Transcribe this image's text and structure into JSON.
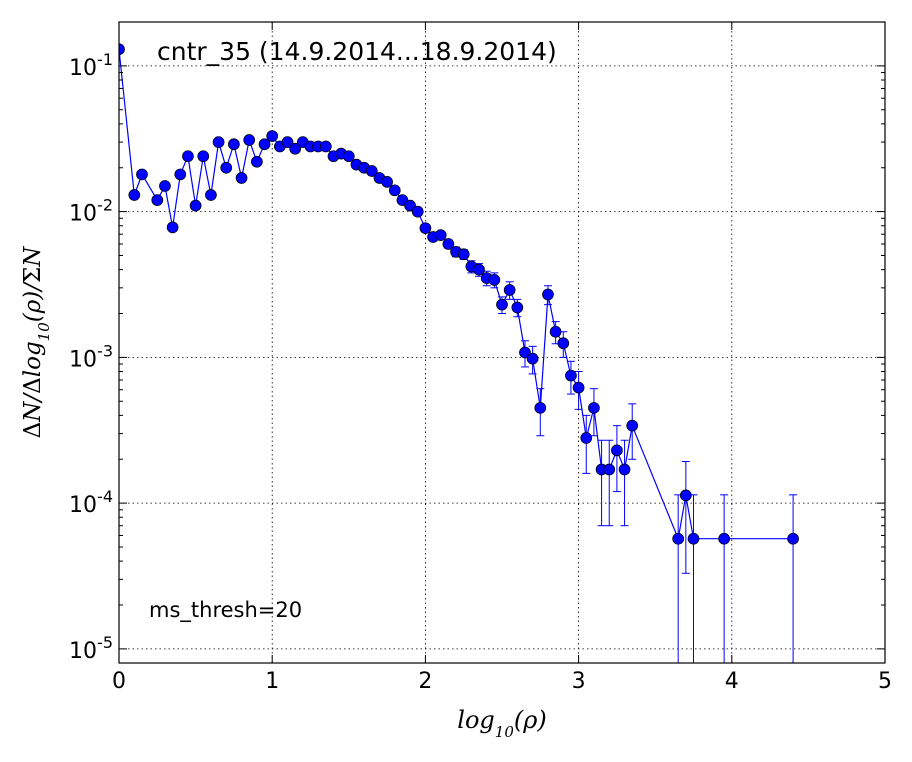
{
  "chart_data": {
    "type": "scatter",
    "title": "cntr_35 (14.9.2014...18.9.2014)",
    "annotation": "ms_thresh=20",
    "xlabel": "log10(ρ)",
    "ylabel": "ΔN/Δlog10(ρ)/ΣN",
    "xlim": [
      0,
      5
    ],
    "ylim": [
      8e-06,
      0.2
    ],
    "yscale": "log",
    "grid": true,
    "x_ticks": [
      "0",
      "1",
      "2",
      "3",
      "4",
      "5"
    ],
    "y_ticks": [
      {
        "base": "10",
        "exp": "-1",
        "value": 0.1
      },
      {
        "base": "10",
        "exp": "-2",
        "value": 0.01
      },
      {
        "base": "10",
        "exp": "-3",
        "value": 0.001
      },
      {
        "base": "10",
        "exp": "-4",
        "value": 0.0001
      },
      {
        "base": "10",
        "exp": "-5",
        "value": 1e-05
      }
    ],
    "series": [
      {
        "color": "#0000ff",
        "marker": "circle",
        "x": [
          0.0,
          0.1,
          0.15,
          0.25,
          0.3,
          0.35,
          0.4,
          0.45,
          0.5,
          0.55,
          0.6,
          0.65,
          0.7,
          0.75,
          0.8,
          0.85,
          0.9,
          0.95,
          1.0,
          1.05,
          1.1,
          1.15,
          1.2,
          1.25,
          1.3,
          1.35,
          1.4,
          1.45,
          1.5,
          1.55,
          1.6,
          1.65,
          1.7,
          1.75,
          1.8,
          1.85,
          1.9,
          1.95,
          2.0,
          2.05,
          2.1,
          2.15,
          2.2,
          2.25,
          2.3,
          2.35,
          2.4,
          2.45,
          2.5,
          2.55,
          2.6,
          2.65,
          2.7,
          2.75,
          2.8,
          2.85,
          2.9,
          2.95,
          3.0,
          3.05,
          3.1,
          3.15,
          3.2,
          3.25,
          3.3,
          3.35,
          3.65,
          3.7,
          3.75,
          3.95,
          4.4
        ],
        "y": [
          0.13,
          0.013,
          0.018,
          0.012,
          0.015,
          0.0078,
          0.018,
          0.024,
          0.011,
          0.024,
          0.013,
          0.03,
          0.02,
          0.029,
          0.017,
          0.031,
          0.022,
          0.029,
          0.033,
          0.028,
          0.03,
          0.027,
          0.03,
          0.028,
          0.028,
          0.028,
          0.024,
          0.025,
          0.024,
          0.021,
          0.02,
          0.019,
          0.017,
          0.016,
          0.014,
          0.012,
          0.011,
          0.01,
          0.0077,
          0.0067,
          0.0069,
          0.006,
          0.0053,
          0.0051,
          0.0042,
          0.004,
          0.0035,
          0.0034,
          0.0023,
          0.0029,
          0.0022,
          0.00108,
          0.00098,
          0.00045,
          0.0027,
          0.0015,
          0.00125,
          0.00075,
          0.00062,
          0.00028,
          0.00045,
          0.00017,
          0.00017,
          0.00023,
          0.00017,
          0.00034,
          5.7e-05,
          0.000113,
          5.7e-05,
          5.7e-05,
          5.7e-05
        ],
        "y_err": [
          0.002,
          0.0005,
          0.0006,
          0.0005,
          0.0006,
          0.0004,
          0.0006,
          0.0007,
          0.0005,
          0.0007,
          0.0005,
          0.0008,
          0.0006,
          0.0008,
          0.0006,
          0.0008,
          0.0007,
          0.0008,
          0.0008,
          0.0008,
          0.0008,
          0.0008,
          0.0008,
          0.0008,
          0.0008,
          0.0008,
          0.0007,
          0.0007,
          0.0007,
          0.0007,
          0.0006,
          0.0006,
          0.0006,
          0.0006,
          0.0005,
          0.0005,
          0.0005,
          0.0005,
          0.0004,
          0.0004,
          0.0004,
          0.0004,
          0.0004,
          0.0004,
          0.0004,
          0.0004,
          0.0004,
          0.0004,
          0.0003,
          0.0004,
          0.0003,
          0.00022,
          0.00021,
          0.00016,
          0.0004,
          0.00026,
          0.00025,
          0.00019,
          0.00018,
          0.00012,
          0.00016,
          0.0001,
          0.0001,
          0.00011,
          0.0001,
          0.00014,
          5.7e-05,
          8e-05,
          5.7e-05,
          5.7e-05,
          5.7e-05
        ]
      }
    ]
  }
}
